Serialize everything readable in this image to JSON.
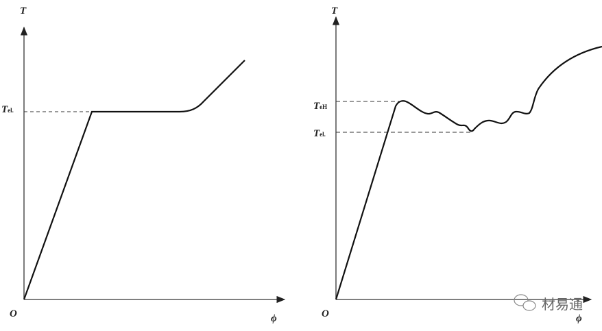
{
  "left_diagram": {
    "y_axis_label": "T",
    "x_axis_label": "ϕ",
    "origin_label": "O",
    "levels": [
      {
        "symbol": "T",
        "subscript": "el."
      }
    ]
  },
  "right_diagram": {
    "y_axis_label": "T",
    "x_axis_label": "ϕ",
    "origin_label": "O",
    "levels": [
      {
        "symbol": "T",
        "subscript": "eH"
      },
      {
        "symbol": "T",
        "subscript": "el."
      }
    ]
  },
  "watermark": {
    "text": "材易通",
    "icon": "wechat-icon"
  }
}
